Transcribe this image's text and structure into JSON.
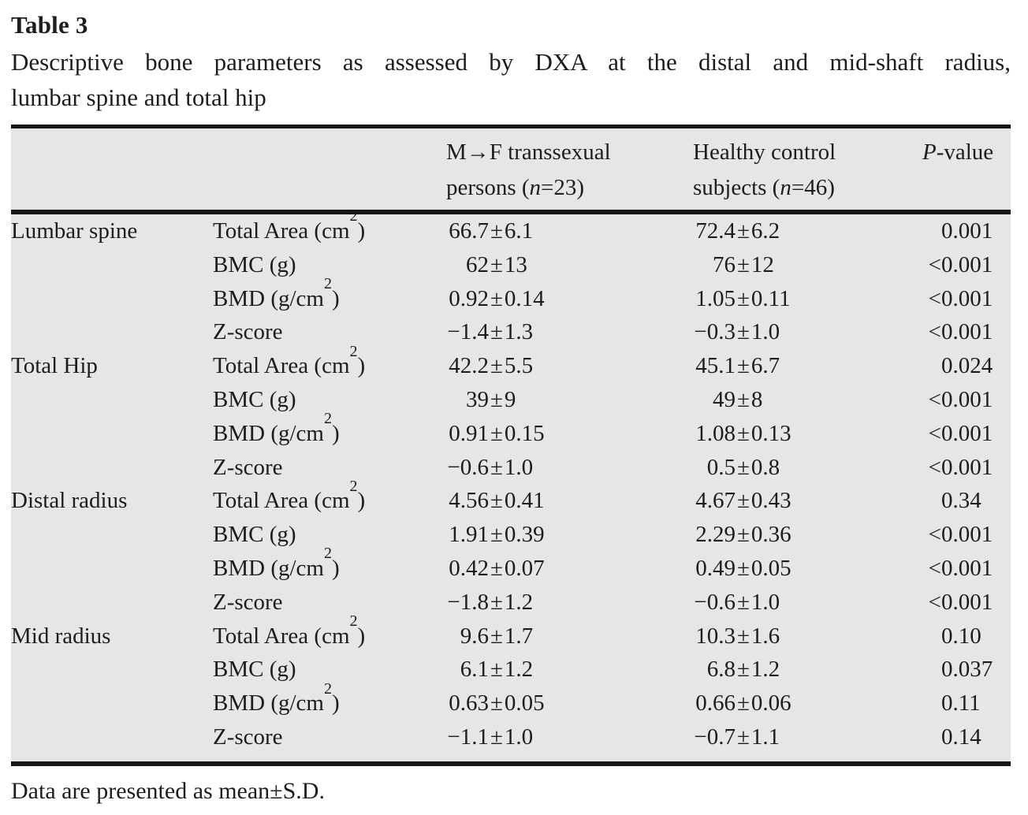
{
  "title": "Table 3",
  "caption_line1": "Descriptive bone parameters as assessed by DXA at the distal and mid-shaft radius,",
  "caption_line2": "lumbar spine and total hip",
  "header": {
    "group1_line1": "M→F transsexual",
    "group1_line2_pre": "persons (",
    "group1_n": "n",
    "group1_line2_post": "=23)",
    "group2_line1": "Healthy control",
    "group2_line2_pre": "subjects (",
    "group2_n": "n",
    "group2_line2_post": "=46)",
    "p_italic": "P",
    "p_rest": "-value"
  },
  "groups": [
    {
      "region": "Lumbar spine",
      "rows": [
        {
          "param_base": "Total Area (cm",
          "param_sup": "2",
          "param_post": ")",
          "mf_mean": "66.7",
          "mf_sd": "6.1",
          "hc_mean": "72.4",
          "hc_sd": "6.2",
          "p_prefix": "",
          "p_value": "0.001"
        },
        {
          "param_base": "BMC (g)",
          "param_sup": "",
          "param_post": "",
          "mf_mean": "62",
          "mf_sd": "13",
          "hc_mean": "76",
          "hc_sd": "12",
          "p_prefix": "<",
          "p_value": "0.001"
        },
        {
          "param_base": "BMD (g/cm",
          "param_sup": "2",
          "param_post": ")",
          "mf_mean": "0.92",
          "mf_sd": "0.14",
          "hc_mean": "1.05",
          "hc_sd": "0.11",
          "p_prefix": "<",
          "p_value": "0.001"
        },
        {
          "param_base": "Z-score",
          "param_sup": "",
          "param_post": "",
          "mf_mean": "−1.4",
          "mf_sd": "1.3",
          "hc_mean": "−0.3",
          "hc_sd": "1.0",
          "p_prefix": "<",
          "p_value": "0.001"
        }
      ]
    },
    {
      "region": "Total Hip",
      "rows": [
        {
          "param_base": "Total Area (cm",
          "param_sup": "2",
          "param_post": ")",
          "mf_mean": "42.2",
          "mf_sd": "5.5",
          "hc_mean": "45.1",
          "hc_sd": "6.7",
          "p_prefix": "",
          "p_value": "0.024"
        },
        {
          "param_base": "BMC (g)",
          "param_sup": "",
          "param_post": "",
          "mf_mean": "39",
          "mf_sd": "9",
          "hc_mean": "49",
          "hc_sd": "8",
          "p_prefix": "<",
          "p_value": "0.001"
        },
        {
          "param_base": "BMD (g/cm",
          "param_sup": "2",
          "param_post": ")",
          "mf_mean": "0.91",
          "mf_sd": "0.15",
          "hc_mean": "1.08",
          "hc_sd": "0.13",
          "p_prefix": "<",
          "p_value": "0.001"
        },
        {
          "param_base": "Z-score",
          "param_sup": "",
          "param_post": "",
          "mf_mean": "−0.6",
          "mf_sd": "1.0",
          "hc_mean": "0.5",
          "hc_sd": "0.8",
          "p_prefix": "<",
          "p_value": "0.001"
        }
      ]
    },
    {
      "region": "Distal radius",
      "rows": [
        {
          "param_base": "Total Area (cm",
          "param_sup": "2",
          "param_post": ")",
          "mf_mean": "4.56",
          "mf_sd": "0.41",
          "hc_mean": "4.67",
          "hc_sd": "0.43",
          "p_prefix": "",
          "p_value": "0.34"
        },
        {
          "param_base": "BMC (g)",
          "param_sup": "",
          "param_post": "",
          "mf_mean": "1.91",
          "mf_sd": "0.39",
          "hc_mean": "2.29",
          "hc_sd": "0.36",
          "p_prefix": "<",
          "p_value": "0.001"
        },
        {
          "param_base": "BMD (g/cm",
          "param_sup": "2",
          "param_post": ")",
          "mf_mean": "0.42",
          "mf_sd": "0.07",
          "hc_mean": "0.49",
          "hc_sd": "0.05",
          "p_prefix": "<",
          "p_value": "0.001"
        },
        {
          "param_base": "Z-score",
          "param_sup": "",
          "param_post": "",
          "mf_mean": "−1.8",
          "mf_sd": "1.2",
          "hc_mean": "−0.6",
          "hc_sd": "1.0",
          "p_prefix": "<",
          "p_value": "0.001"
        }
      ]
    },
    {
      "region": "Mid radius",
      "rows": [
        {
          "param_base": "Total Area (cm",
          "param_sup": "2",
          "param_post": ")",
          "mf_mean": "9.6",
          "mf_sd": "1.7",
          "hc_mean": "10.3",
          "hc_sd": "1.6",
          "p_prefix": "",
          "p_value": "0.10"
        },
        {
          "param_base": "BMC (g)",
          "param_sup": "",
          "param_post": "",
          "mf_mean": "6.1",
          "mf_sd": "1.2",
          "hc_mean": "6.8",
          "hc_sd": "1.2",
          "p_prefix": "",
          "p_value": "0.037"
        },
        {
          "param_base": "BMD (g/cm",
          "param_sup": "2",
          "param_post": ")",
          "mf_mean": "0.63",
          "mf_sd": "0.05",
          "hc_mean": "0.66",
          "hc_sd": "0.06",
          "p_prefix": "",
          "p_value": "0.11"
        },
        {
          "param_base": "Z-score",
          "param_sup": "",
          "param_post": "",
          "mf_mean": "−1.1",
          "mf_sd": "1.0",
          "hc_mean": "−0.7",
          "hc_sd": "1.1",
          "p_prefix": "",
          "p_value": "0.14"
        }
      ]
    }
  ],
  "plus_minus": "±",
  "footnote": "Data are presented as mean±S.D.",
  "colors": {
    "table_background": "#e6e6e7",
    "rule": "#161616",
    "text": "#1d1d1d"
  }
}
